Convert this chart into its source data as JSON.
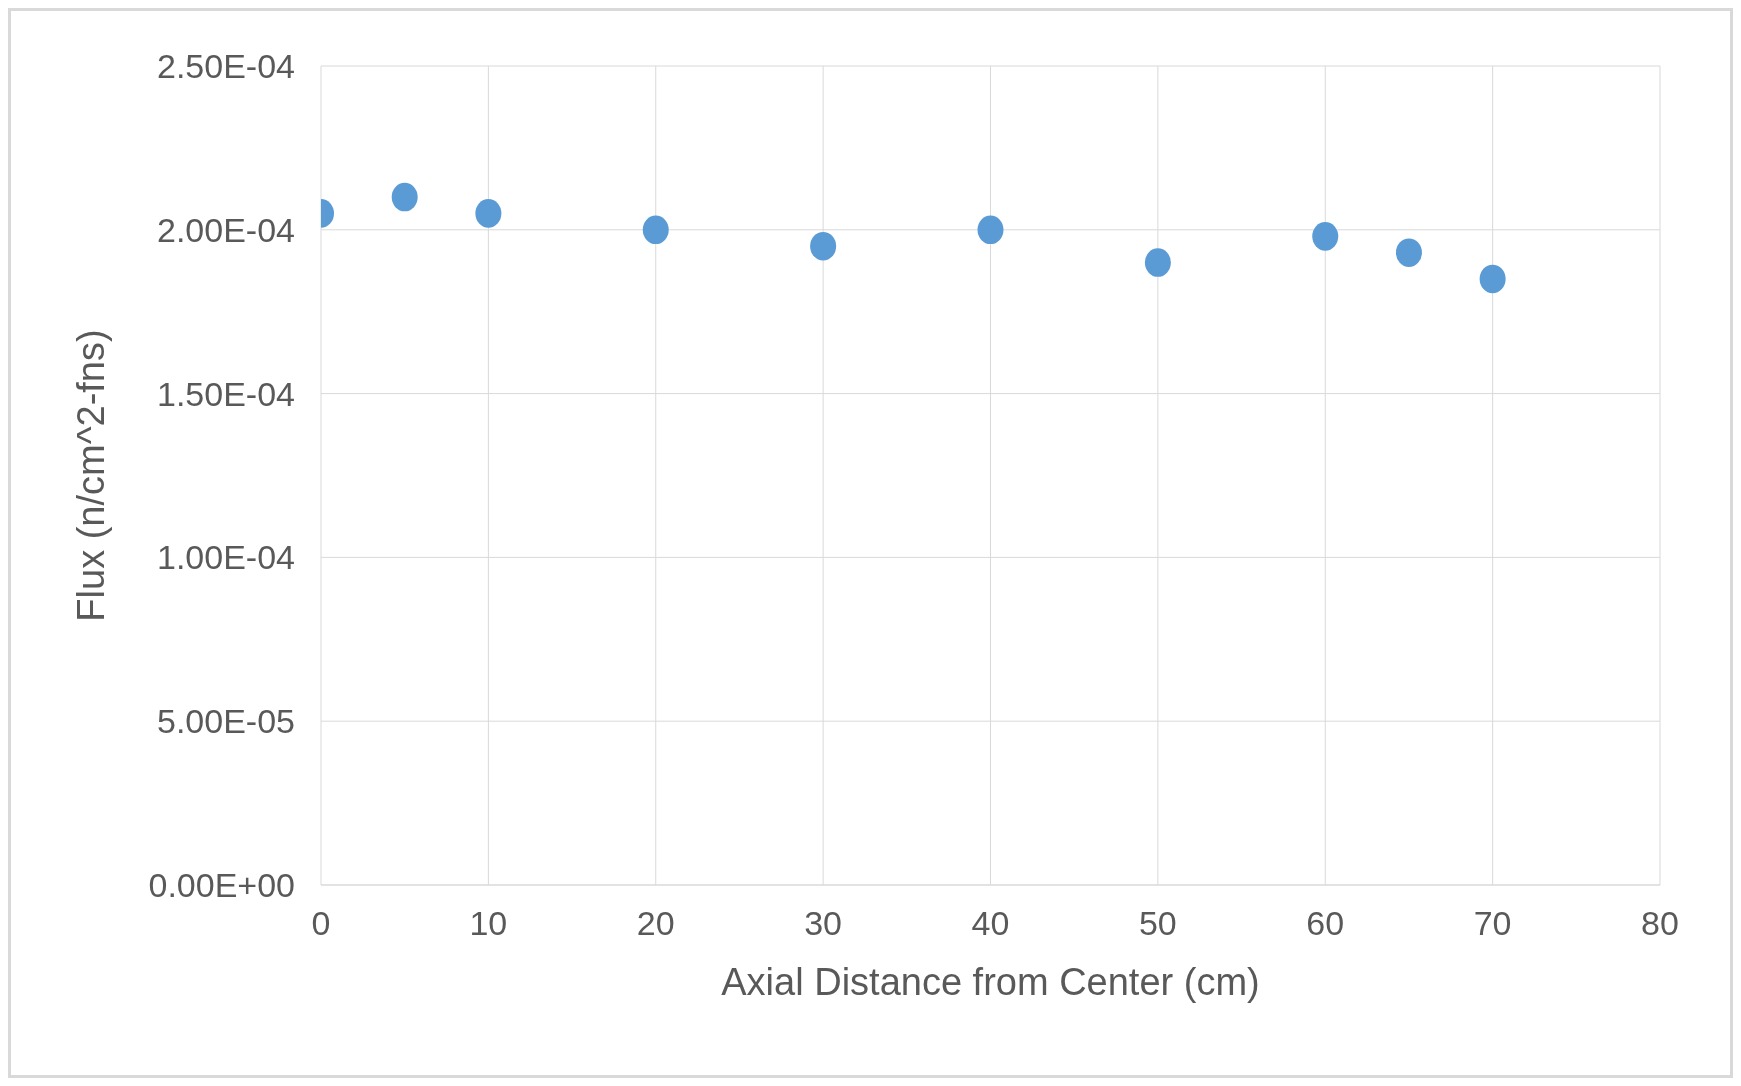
{
  "chart_data": {
    "type": "scatter",
    "xlabel": "Axial Distance from Center (cm)",
    "ylabel": "Flux (n/cm^2-fns)",
    "x": [
      0,
      5,
      10,
      20,
      30,
      40,
      50,
      60,
      65,
      70
    ],
    "series": [
      {
        "color": "#5b9bd5",
        "values": [
          0.000205,
          0.00021,
          0.000205,
          0.0002,
          0.000195,
          0.0002,
          0.00019,
          0.000198,
          0.000193,
          0.000185
        ]
      }
    ],
    "xlim": [
      0,
      80
    ],
    "xticks": [
      0,
      10,
      20,
      30,
      40,
      50,
      60,
      70,
      80
    ],
    "ylim": [
      0,
      0.00025
    ],
    "yticks": [
      {
        "value": 0,
        "label": "0.00E+00"
      },
      {
        "value": 5e-05,
        "label": "5.00E-05"
      },
      {
        "value": 0.0001,
        "label": "1.00E-04"
      },
      {
        "value": 0.00015,
        "label": "1.50E-04"
      },
      {
        "value": 0.0002,
        "label": "2.00E-04"
      },
      {
        "value": 0.00025,
        "label": "2.50E-04"
      }
    ],
    "grid": true,
    "marker": "circle",
    "legend": false
  }
}
